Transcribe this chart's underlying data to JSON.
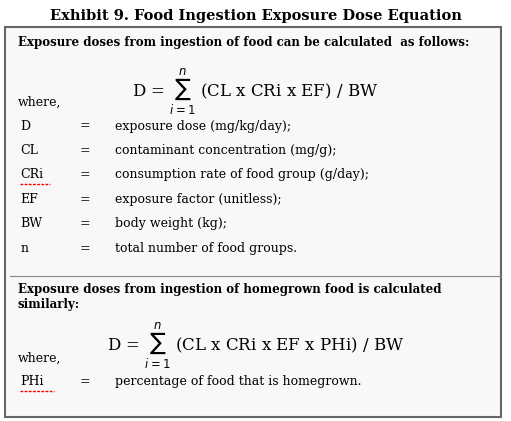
{
  "title": "Exhibit 9. Food Ingestion Exposure Dose Equation",
  "title_fontsize": 10.5,
  "bg_color": "#ffffff",
  "text_color": "#000000",
  "font_family": "DejaVu Serif",
  "bold_intro1": "Exposure doses from ingestion of food can be calculated  as follows:",
  "bold_intro2_line1": "Exposure doses from ingestion of homegrown food is calculated",
  "bold_intro2_line2": "similarly:",
  "where1": "where,",
  "where2": "where,",
  "definitions1": [
    [
      "D",
      "=",
      "exposure dose (mg/kg/day);"
    ],
    [
      "CL",
      "=",
      "contaminant concentration (mg/g);"
    ],
    [
      "CRi",
      "=",
      "consumption rate of food group (g/day);"
    ],
    [
      "EF",
      "=",
      "exposure factor (unitless);"
    ],
    [
      "BW",
      "=",
      "body weight (kg);"
    ],
    [
      "n",
      "=",
      "total number of food groups."
    ]
  ],
  "definitions2": [
    [
      "PHi",
      "=",
      "percentage of food that is homegrown."
    ]
  ],
  "underline_terms1": [
    "CRi"
  ],
  "underline_terms2": [
    "CRi",
    "PHi"
  ]
}
